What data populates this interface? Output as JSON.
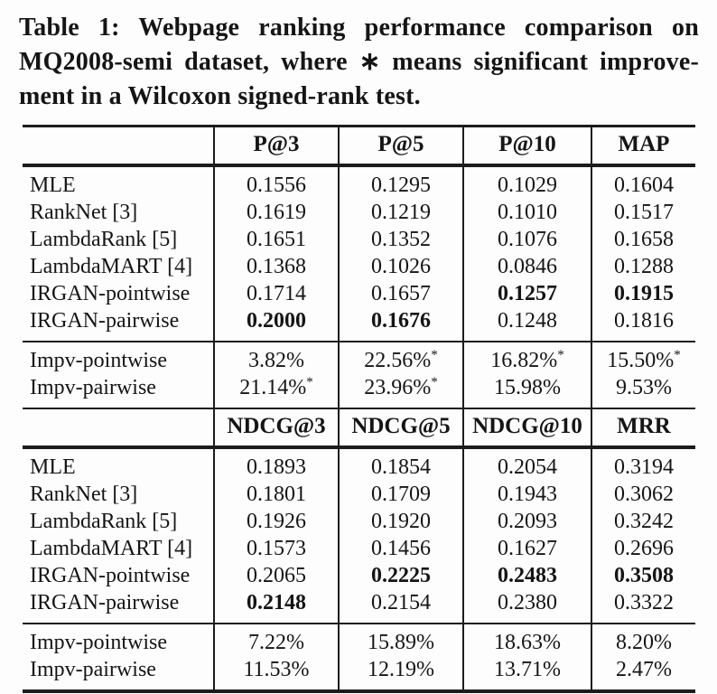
{
  "colors": {
    "text": "#151515",
    "rule": "#1c1c1c",
    "background": "#fdfdfd"
  },
  "caption": {
    "lines": [
      "Table 1: Webpage ranking performance comparison on",
      "MQ2008-semi dataset, where ∗ means significant improve-",
      "ment in a Wilcoxon signed-rank test."
    ]
  },
  "t1": {
    "headers": [
      "P@3",
      "P@5",
      "P@10",
      "MAP"
    ],
    "rows": [
      {
        "label": "MLE",
        "v": [
          "0.1556",
          "0.1295",
          "0.1029",
          "0.1604"
        ]
      },
      {
        "label": "RankNet [3]",
        "v": [
          "0.1619",
          "0.1219",
          "0.1010",
          "0.1517"
        ]
      },
      {
        "label": "LambdaRank [5]",
        "v": [
          "0.1651",
          "0.1352",
          "0.1076",
          "0.1658"
        ]
      },
      {
        "label": "LambdaMART [4]",
        "v": [
          "0.1368",
          "0.1026",
          "0.0846",
          "0.1288"
        ]
      },
      {
        "label": "IRGAN-pointwise",
        "v": [
          "0.1714",
          "0.1657",
          "0.1257",
          "0.1915"
        ]
      },
      {
        "label": "IRGAN-pairwise",
        "v": [
          "0.2000",
          "0.1676",
          "0.1248",
          "0.1816"
        ]
      }
    ]
  },
  "impv1": {
    "rows": [
      {
        "label": "Impv-pointwise",
        "v": [
          "3.82%",
          "22.56%",
          "16.82%",
          "15.50%"
        ],
        "s": [
          "",
          "*",
          "*",
          "*"
        ]
      },
      {
        "label": "Impv-pairwise",
        "v": [
          "21.14%",
          "23.96%",
          "15.98%",
          "9.53%"
        ],
        "s": [
          "*",
          "*",
          "",
          ""
        ]
      }
    ]
  },
  "t2": {
    "headers": [
      "NDCG@3",
      "NDCG@5",
      "NDCG@10",
      "MRR"
    ],
    "rows": [
      {
        "label": "MLE",
        "v": [
          "0.1893",
          "0.1854",
          "0.2054",
          "0.3194"
        ]
      },
      {
        "label": "RankNet [3]",
        "v": [
          "0.1801",
          "0.1709",
          "0.1943",
          "0.3062"
        ]
      },
      {
        "label": "LambdaRank [5]",
        "v": [
          "0.1926",
          "0.1920",
          "0.2093",
          "0.3242"
        ]
      },
      {
        "label": "LambdaMART [4]",
        "v": [
          "0.1573",
          "0.1456",
          "0.1627",
          "0.2696"
        ]
      },
      {
        "label": "IRGAN-pointwise",
        "v": [
          "0.2065",
          "0.2225",
          "0.2483",
          "0.3508"
        ]
      },
      {
        "label": "IRGAN-pairwise",
        "v": [
          "0.2148",
          "0.2154",
          "0.2380",
          "0.3322"
        ]
      }
    ]
  },
  "impv2": {
    "rows": [
      {
        "label": "Impv-pointwise",
        "v": [
          "7.22%",
          "15.89%",
          "18.63%",
          "8.20%"
        ],
        "s": [
          "",
          "",
          "",
          ""
        ]
      },
      {
        "label": "Impv-pairwise",
        "v": [
          "11.53%",
          "12.19%",
          "13.71%",
          "2.47%"
        ],
        "s": [
          "",
          "",
          "",
          ""
        ]
      }
    ]
  }
}
